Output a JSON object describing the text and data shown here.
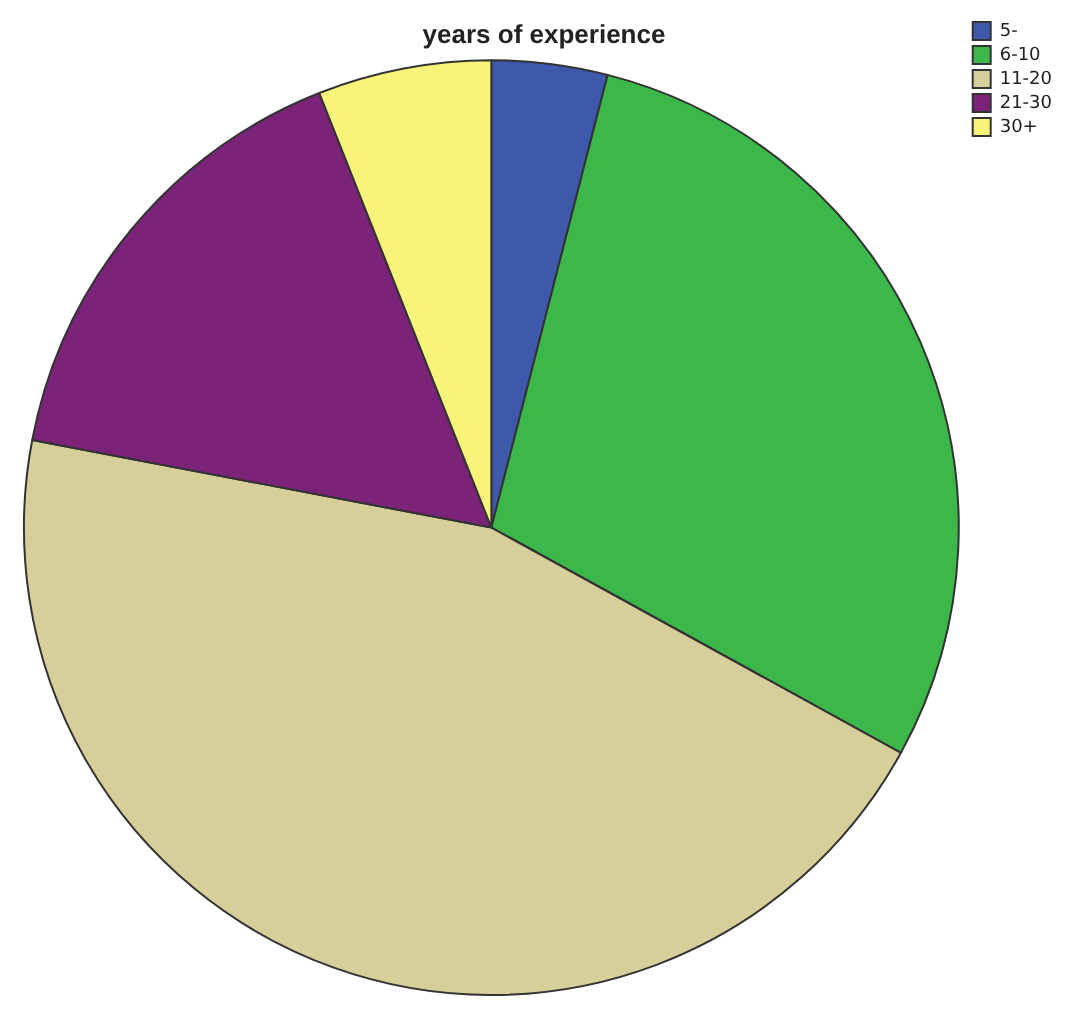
{
  "chart_data": {
    "type": "pie",
    "title": "years of experience",
    "categories": [
      "5-",
      "6-10",
      "11-20",
      "21-30",
      "30+"
    ],
    "values": [
      4,
      29,
      45,
      16,
      6
    ],
    "colors": [
      "#3e58ac",
      "#3cb84a",
      "#d6cf9a",
      "#7b2378",
      "#f8f47a"
    ],
    "legend": "top right"
  }
}
